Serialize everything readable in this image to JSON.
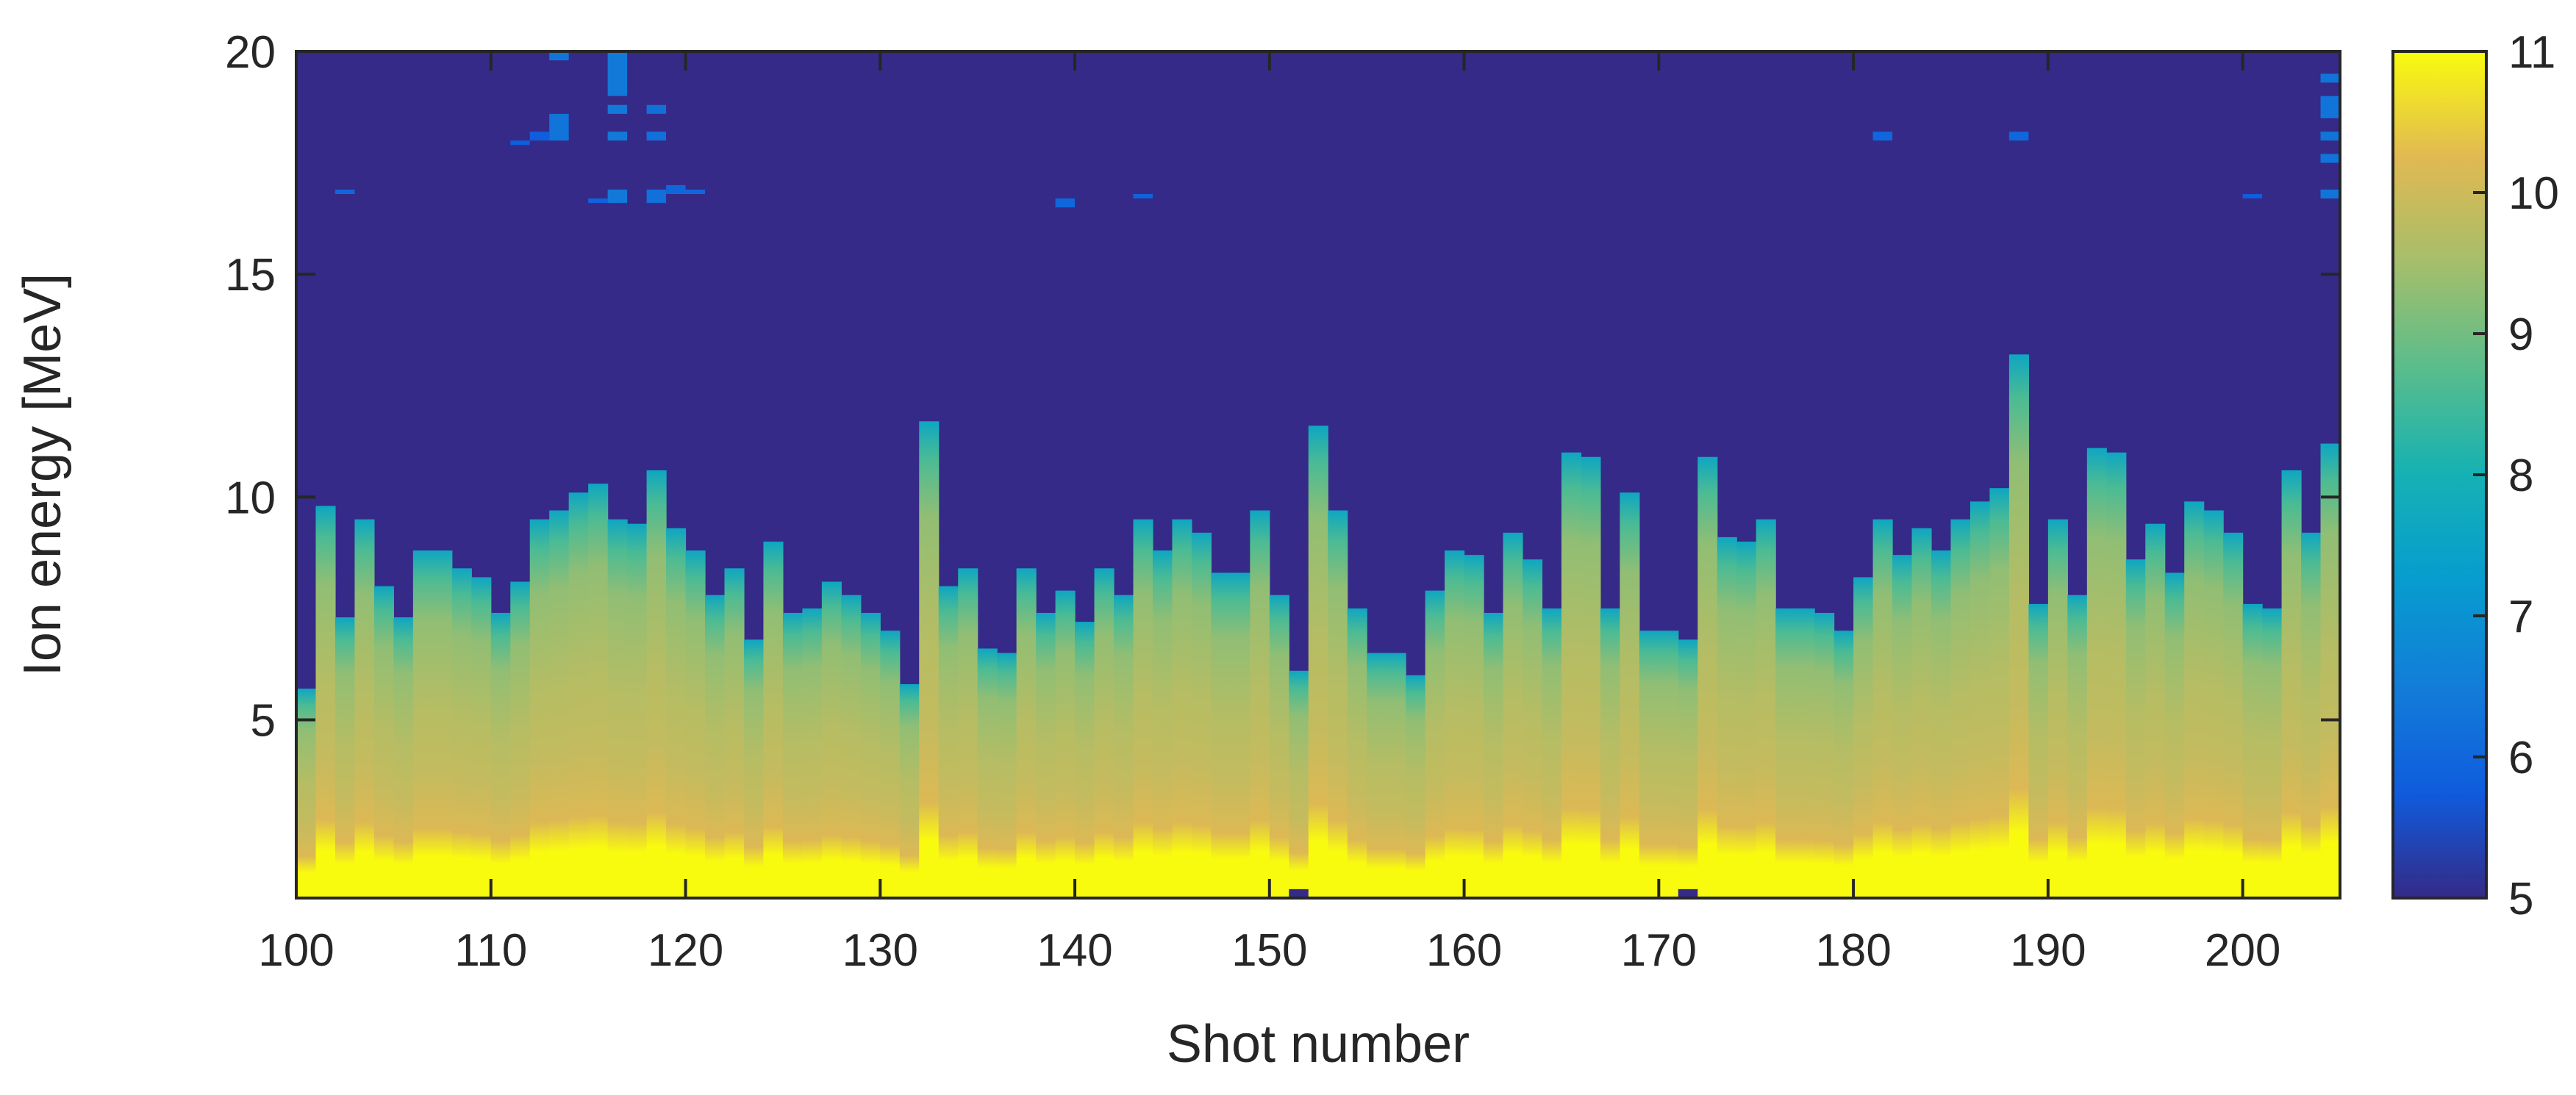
{
  "chart_data": {
    "type": "heatmap",
    "title": "",
    "xlabel": "Shot number",
    "ylabel": "Ion energy [MeV]",
    "xlim": [
      100,
      205
    ],
    "ylim": [
      1,
      20
    ],
    "xticks": [
      "100",
      "110",
      "120",
      "130",
      "140",
      "150",
      "160",
      "170",
      "180",
      "190",
      "200"
    ],
    "yticks": [
      "5",
      "10",
      "15",
      "20"
    ],
    "colorbar": {
      "ticks": [
        "5",
        "6",
        "7",
        "8",
        "9",
        "10",
        "11"
      ],
      "range": [
        5,
        11
      ],
      "colormap": "parula"
    },
    "background_value": 5,
    "shots": [
      100,
      101,
      102,
      103,
      104,
      105,
      106,
      107,
      108,
      109,
      110,
      111,
      112,
      113,
      114,
      115,
      116,
      117,
      118,
      119,
      120,
      121,
      122,
      123,
      124,
      125,
      126,
      127,
      128,
      129,
      130,
      131,
      132,
      133,
      134,
      135,
      136,
      137,
      138,
      139,
      140,
      141,
      142,
      143,
      144,
      145,
      146,
      147,
      148,
      149,
      150,
      151,
      152,
      153,
      154,
      155,
      156,
      157,
      158,
      159,
      160,
      161,
      162,
      163,
      164,
      165,
      166,
      167,
      168,
      169,
      170,
      171,
      172,
      173,
      174,
      175,
      176,
      177,
      178,
      179,
      180,
      181,
      182,
      183,
      184,
      185,
      186,
      187,
      188,
      189,
      190,
      191,
      192,
      193,
      194,
      195,
      196,
      197,
      198,
      199,
      200,
      201,
      202,
      203,
      204
    ],
    "cutoff_energy_MeV": [
      5.7,
      9.8,
      7.3,
      9.5,
      8.0,
      7.3,
      8.8,
      8.8,
      8.4,
      8.2,
      7.4,
      8.1,
      9.5,
      9.7,
      10.1,
      10.3,
      9.5,
      9.4,
      10.6,
      9.3,
      8.8,
      7.8,
      8.4,
      6.8,
      9.0,
      7.4,
      7.5,
      8.1,
      7.8,
      7.4,
      7.0,
      5.8,
      11.7,
      8.0,
      8.4,
      6.6,
      6.5,
      8.4,
      7.4,
      7.9,
      7.2,
      8.4,
      7.8,
      9.5,
      8.8,
      9.5,
      9.2,
      8.3,
      8.3,
      9.7,
      7.8,
      6.1,
      11.6,
      9.7,
      7.5,
      6.5,
      6.5,
      6.0,
      7.9,
      8.8,
      8.7,
      7.4,
      9.2,
      8.6,
      7.5,
      11.0,
      10.9,
      7.5,
      10.1,
      7.0,
      7.0,
      6.8,
      10.9,
      9.1,
      9.0,
      9.5,
      7.5,
      7.5,
      7.4,
      7.0,
      8.2,
      9.5,
      8.7,
      9.3,
      8.8,
      9.5,
      9.9,
      10.2,
      13.2,
      7.6,
      9.5,
      7.8,
      11.1,
      11.0,
      8.6,
      9.4,
      8.3,
      9.9,
      9.7,
      9.2,
      7.6,
      7.5,
      10.6,
      9.2,
      11.2
    ],
    "signal_streaks": [
      {
        "shot": 113,
        "e_min": 18.0,
        "e_max": 18.6,
        "value": 6.3
      },
      {
        "shot": 113,
        "e_min": 19.8,
        "e_max": 20.0,
        "value": 6.3
      },
      {
        "shot": 112,
        "e_min": 18.0,
        "e_max": 18.2,
        "value": 5.8
      },
      {
        "shot": 111,
        "e_min": 17.9,
        "e_max": 18.0,
        "value": 5.8
      },
      {
        "shot": 116,
        "e_min": 19.0,
        "e_max": 20.0,
        "value": 6.4
      },
      {
        "shot": 116,
        "e_min": 18.6,
        "e_max": 18.8,
        "value": 6.4
      },
      {
        "shot": 116,
        "e_min": 18.0,
        "e_max": 18.2,
        "value": 6.4
      },
      {
        "shot": 116,
        "e_min": 16.6,
        "e_max": 16.9,
        "value": 6.4
      },
      {
        "shot": 115,
        "e_min": 16.6,
        "e_max": 16.7,
        "value": 5.9
      },
      {
        "shot": 118,
        "e_min": 18.6,
        "e_max": 18.8,
        "value": 6.2
      },
      {
        "shot": 118,
        "e_min": 18.0,
        "e_max": 18.2,
        "value": 6.2
      },
      {
        "shot": 118,
        "e_min": 16.6,
        "e_max": 16.9,
        "value": 6.2
      },
      {
        "shot": 119,
        "e_min": 16.8,
        "e_max": 17.0,
        "value": 6.0
      },
      {
        "shot": 120,
        "e_min": 16.8,
        "e_max": 16.9,
        "value": 6.0
      },
      {
        "shot": 102,
        "e_min": 16.8,
        "e_max": 16.9,
        "value": 6.0
      },
      {
        "shot": 139,
        "e_min": 16.5,
        "e_max": 16.7,
        "value": 6.0
      },
      {
        "shot": 143,
        "e_min": 16.7,
        "e_max": 16.8,
        "value": 5.9
      },
      {
        "shot": 181,
        "e_min": 18.0,
        "e_max": 18.2,
        "value": 6.0
      },
      {
        "shot": 188,
        "e_min": 18.0,
        "e_max": 18.2,
        "value": 6.0
      },
      {
        "shot": 200,
        "e_min": 16.7,
        "e_max": 16.8,
        "value": 5.8
      },
      {
        "shot": 204,
        "e_min": 19.3,
        "e_max": 19.5,
        "value": 6.3
      },
      {
        "shot": 204,
        "e_min": 18.5,
        "e_max": 19.0,
        "value": 6.3
      },
      {
        "shot": 204,
        "e_min": 18.0,
        "e_max": 18.2,
        "value": 6.3
      },
      {
        "shot": 204,
        "e_min": 17.5,
        "e_max": 17.7,
        "value": 6.3
      },
      {
        "shot": 204,
        "e_min": 16.7,
        "e_max": 16.9,
        "value": 6.3
      }
    ],
    "low_dips": [
      {
        "shot": 151,
        "e_min": 1.0,
        "e_max": 1.2,
        "value": 5.0
      },
      {
        "shot": 171,
        "e_min": 1.0,
        "e_max": 1.2,
        "value": 5.0
      }
    ],
    "grid": false,
    "legend": "none"
  }
}
